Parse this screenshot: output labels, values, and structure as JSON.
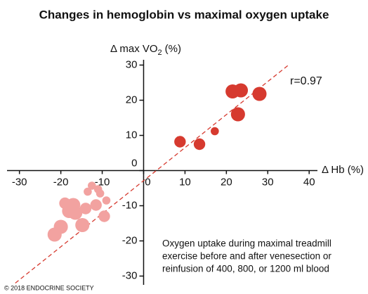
{
  "chart_data": {
    "type": "scatter",
    "title": "Changes in hemoglobin vs maximal oxygen uptake",
    "x_label": "Δ Hb (%)",
    "y_label": {
      "text": "Δ max VO",
      "sub": "2",
      "suffix": "(%)"
    },
    "xlim": [
      -33,
      42
    ],
    "ylim": [
      -32.5,
      31.5
    ],
    "xticks": [
      -30,
      -20,
      -10,
      0,
      10,
      20,
      30,
      40
    ],
    "yticks": [
      -30,
      -20,
      -10,
      0,
      10,
      20,
      30
    ],
    "series": [
      {
        "color": "#d63a2f",
        "x": [
          8.8,
          13.5,
          17.2,
          21.5,
          23.5,
          22.8,
          28
        ],
        "values": [
          8.2,
          7.5,
          11.2,
          22.5,
          22.8,
          16,
          21.8
        ],
        "sizes": [
          800,
          800,
          400,
          1200,
          1200,
          1200,
          1200
        ]
      },
      {
        "color": "#f2a2a0",
        "x": [
          -9.5,
          -9,
          -10.5,
          -13.5,
          -12.5,
          -11,
          -14.8,
          -21.5,
          -20,
          -19,
          -17,
          -16.5,
          -14,
          -11.5,
          -18
        ],
        "values": [
          -13,
          -8.5,
          -6.5,
          -6,
          -4.3,
          -5.3,
          -15.5,
          -18.2,
          -16,
          -9.3,
          -9.8,
          -12,
          -10.8,
          -9.8,
          -11.5
        ],
        "sizes": [
          800,
          400,
          400,
          400,
          400,
          400,
          1200,
          1200,
          1200,
          800,
          1200,
          1200,
          800,
          800,
          1200
        ]
      }
    ],
    "trendline": {
      "x": [
        -31,
        35
      ],
      "y": [
        -32,
        30
      ],
      "color": "#d63a2f"
    },
    "annotation": "r=0.97",
    "note": [
      "Oxygen uptake during maximal treadmill",
      "exercise before and after venesection or",
      "reinfusion of 400, 800, or 1200 ml blood"
    ],
    "footer": "© 2018 ENDOCRINE SOCIETY"
  }
}
